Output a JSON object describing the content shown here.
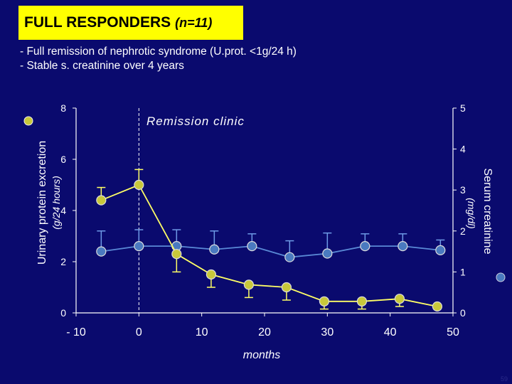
{
  "slide": {
    "title_main": "FULL RESPONDERS",
    "title_n": "(n=11)",
    "bullets": [
      "- Full remission of nephrotic syndrome (U.prot. <1g/24 h)",
      "- Stable s. creatinine  over 4 years"
    ],
    "slide_number": "59"
  },
  "colors": {
    "background": "#0a0a6e",
    "title_box": "#ffff00",
    "protein_series": "#ffff66",
    "protein_marker": "#c8c83a",
    "creatinine_series": "#5a8ad6",
    "creatinine_marker": "#4a7ac0",
    "error_bars_protein": "#ffff66",
    "error_bars_creatinine": "#6e9ae6"
  },
  "chart_data": {
    "type": "line",
    "annotation": "Remission clinic",
    "annotation_x": 0,
    "xlabel": "months",
    "x_ticks": [
      "- 10",
      "0",
      "10",
      "20",
      "30",
      "40",
      "50"
    ],
    "x_tick_values": [
      -10,
      0,
      10,
      20,
      30,
      40,
      50
    ],
    "xlim": [
      -10,
      50
    ],
    "y_left": {
      "label_line1": "Urinary protein excretion",
      "label_line2": "(g/24 hours)",
      "ticks": [
        "0",
        "2",
        "4",
        "6",
        "8"
      ],
      "tick_values": [
        0,
        2,
        4,
        6,
        8
      ],
      "lim": [
        0,
        8
      ]
    },
    "y_right": {
      "label_line1": "Serum creatinine",
      "label_line2": "(mg/dl)",
      "ticks": [
        "0",
        "1",
        "2",
        "3",
        "4",
        "5"
      ],
      "tick_values": [
        0,
        1,
        2,
        3,
        4,
        5
      ],
      "lim": [
        0,
        5
      ]
    },
    "series": [
      {
        "name": "Urinary protein excretion",
        "axis": "left",
        "x": [
          -6,
          0,
          6,
          11.5,
          17.5,
          23.5,
          29.5,
          35.5,
          41.5,
          47.5
        ],
        "y": [
          4.4,
          5.0,
          2.3,
          1.5,
          1.1,
          1.0,
          0.45,
          0.45,
          0.55,
          0.25
        ],
        "err_low": [
          0,
          0,
          0.7,
          0.5,
          0.5,
          0.5,
          0.3,
          0.3,
          0.3,
          0
        ],
        "err_high": [
          0.5,
          0.6,
          0,
          0,
          0,
          0,
          0,
          0,
          0,
          0
        ]
      },
      {
        "name": "Serum creatinine",
        "axis": "right",
        "x": [
          -6,
          0,
          6,
          12,
          18,
          24,
          30,
          36,
          42,
          48
        ],
        "y": [
          1.5,
          1.63,
          1.63,
          1.55,
          1.63,
          1.36,
          1.45,
          1.63,
          1.63,
          1.53
        ],
        "err_high": [
          0.5,
          0.4,
          0.4,
          0.45,
          0.3,
          0.4,
          0.5,
          0.3,
          0.3,
          0.25
        ]
      }
    ]
  }
}
